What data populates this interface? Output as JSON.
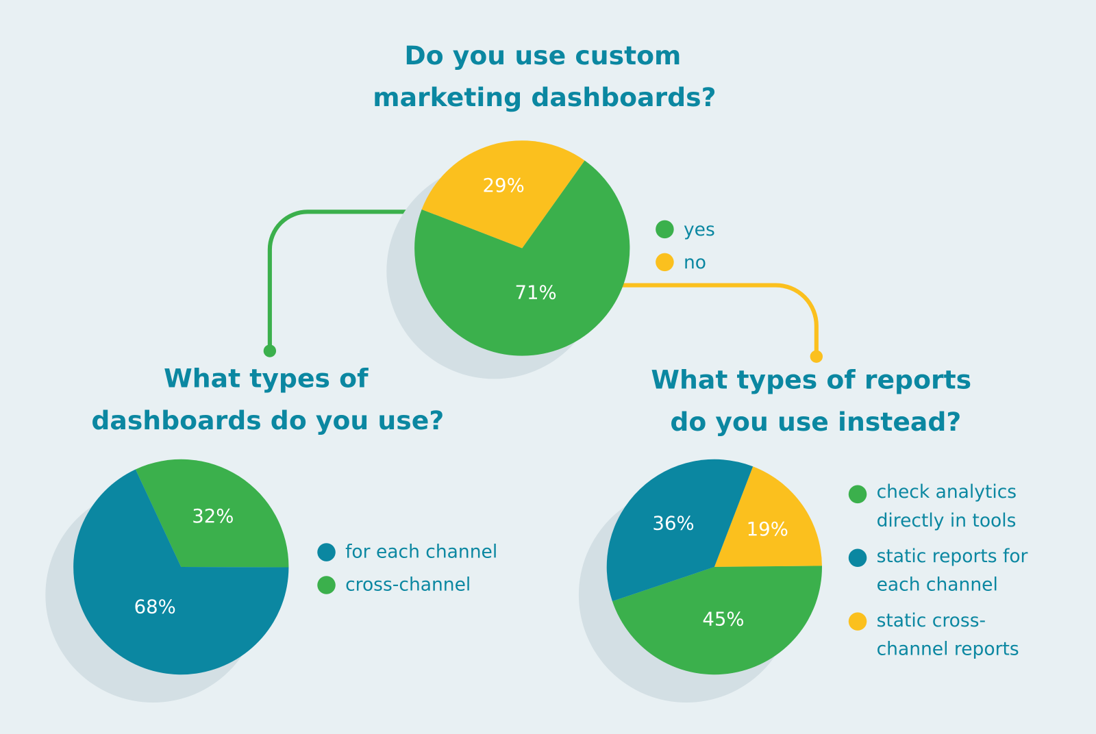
{
  "colors": {
    "background": "#e8f0f3",
    "shadow": "#d3dfe4",
    "teal": "#0b87a1",
    "green": "#3bb04c",
    "yellow": "#fbc01e",
    "text": "#0b87a1"
  },
  "chart_data": [
    {
      "type": "pie",
      "title": [
        "Do you use custom",
        "marketing dashboards?"
      ],
      "slices": [
        {
          "label": "yes",
          "value": 71,
          "display": "71%",
          "color": "#3bb04c"
        },
        {
          "label": "no",
          "value": 29,
          "display": "29%",
          "color": "#fbc01e"
        }
      ],
      "legend_position": "right"
    },
    {
      "type": "pie",
      "title": [
        "What types of",
        "dashboards do you use?"
      ],
      "slices": [
        {
          "label": "cross-channel",
          "value": 32,
          "display": "32%",
          "color": "#3bb04c"
        },
        {
          "label": "for each channel",
          "value": 68,
          "display": "68%",
          "color": "#0b87a1"
        }
      ],
      "legend": [
        {
          "label": [
            "for each channel"
          ],
          "color": "#0b87a1"
        },
        {
          "label": [
            "cross-channel"
          ],
          "color": "#3bb04c"
        }
      ],
      "legend_position": "right"
    },
    {
      "type": "pie",
      "title": [
        "What types of reports",
        "do you use instead?"
      ],
      "slices": [
        {
          "label": "static cross-channel reports",
          "value": 19,
          "display": "19%",
          "color": "#fbc01e"
        },
        {
          "label": "check analytics directly in tools",
          "value": 45,
          "display": "45%",
          "color": "#3bb04c"
        },
        {
          "label": "static reports for each channel",
          "value": 36,
          "display": "36%",
          "color": "#0b87a1"
        }
      ],
      "legend": [
        {
          "label": [
            "check analytics",
            "directly in tools"
          ],
          "color": "#3bb04c"
        },
        {
          "label": [
            "static reports for",
            "each channel"
          ],
          "color": "#0b87a1"
        },
        {
          "label": [
            "static cross-",
            "channel reports"
          ],
          "color": "#fbc01e"
        }
      ],
      "legend_position": "right"
    }
  ]
}
